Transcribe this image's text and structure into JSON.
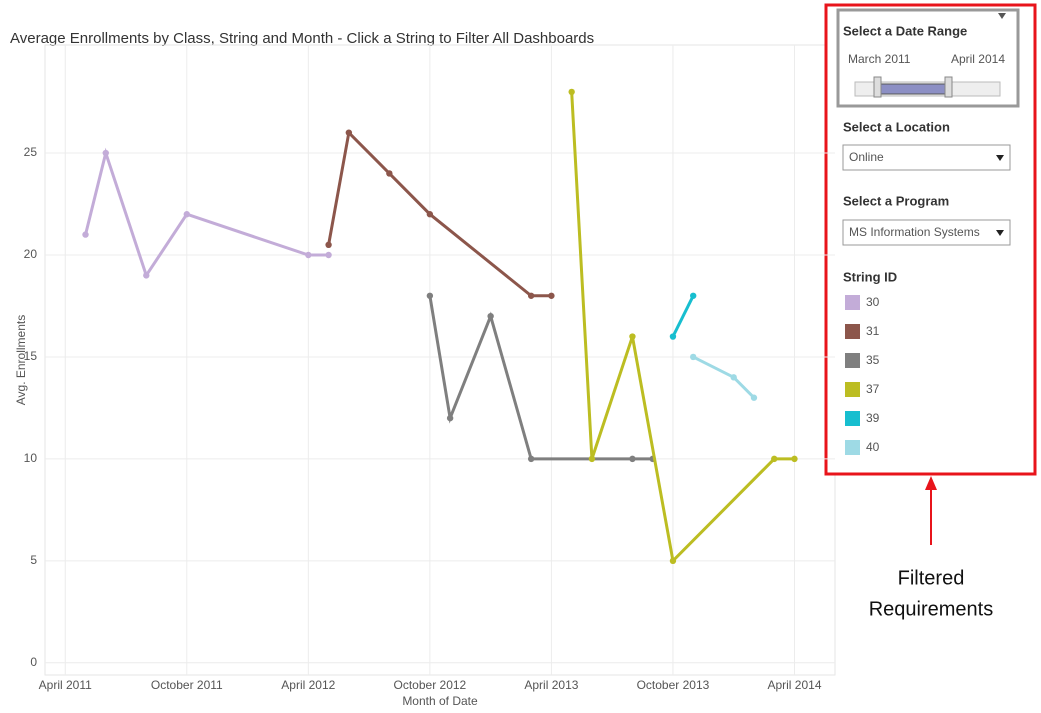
{
  "chart_data": {
    "type": "line",
    "title": "Average Enrollments by Class, String and Month - Click a String to Filter All Dashboards",
    "x_label": "Month of Date",
    "y_label": "Avg. Enrollments",
    "legend_title": "String ID",
    "xlim": [
      "2011-03",
      "2014-06"
    ],
    "xticks": [
      {
        "value": "2011-04",
        "label": "April 2011"
      },
      {
        "value": "2011-10",
        "label": "October 2011"
      },
      {
        "value": "2012-04",
        "label": "April 2012"
      },
      {
        "value": "2012-10",
        "label": "October 2012"
      },
      {
        "value": "2013-04",
        "label": "April 2013"
      },
      {
        "value": "2013-10",
        "label": "October 2013"
      },
      {
        "value": "2014-04",
        "label": "April 2014"
      }
    ],
    "ylim": [
      -0.6,
      30.3
    ],
    "yticks": [
      0,
      5,
      10,
      15,
      20,
      25
    ],
    "grid": true,
    "series": [
      {
        "name": "30",
        "color": "#c3acd8",
        "x": [
          "2011-05",
          "2011-06",
          "2011-08",
          "2011-10",
          "2012-04",
          "2012-05"
        ],
        "values": [
          21,
          25,
          19,
          22,
          20,
          20
        ]
      },
      {
        "name": "31",
        "color": "#8c564b",
        "x": [
          "2012-05",
          "2012-06",
          "2012-08",
          "2012-10",
          "2013-03",
          "2013-04"
        ],
        "values": [
          20.5,
          26,
          24,
          22,
          18,
          18
        ]
      },
      {
        "name": "35",
        "color": "#7f7f7f",
        "x": [
          "2012-10",
          "2012-11",
          "2013-01",
          "2013-03",
          "2013-08",
          "2013-09"
        ],
        "values": [
          18,
          12,
          17,
          10,
          10,
          10
        ]
      },
      {
        "name": "37",
        "color": "#bcbd22",
        "x": [
          "2013-05",
          "2013-06",
          "2013-08",
          "2013-10",
          "2014-03",
          "2014-04"
        ],
        "values": [
          28,
          10,
          16,
          5,
          10,
          10
        ]
      },
      {
        "name": "39",
        "color": "#17becf",
        "x": [
          "2013-10",
          "2013-11"
        ],
        "values": [
          16,
          18
        ]
      },
      {
        "name": "40",
        "color": "#9edae5",
        "x": [
          "2013-11",
          "2014-01",
          "2014-02"
        ],
        "values": [
          15,
          14,
          13
        ]
      }
    ]
  },
  "filters": {
    "date_range": {
      "label": "Select a Date Range",
      "start": "March 2011",
      "end": "April 2014"
    },
    "location": {
      "label": "Select a Location",
      "value": "Online"
    },
    "program": {
      "label": "Select a Program",
      "value": "MS Information Systems"
    }
  },
  "annotation": {
    "line1": "Filtered",
    "line2": "Requirements"
  }
}
